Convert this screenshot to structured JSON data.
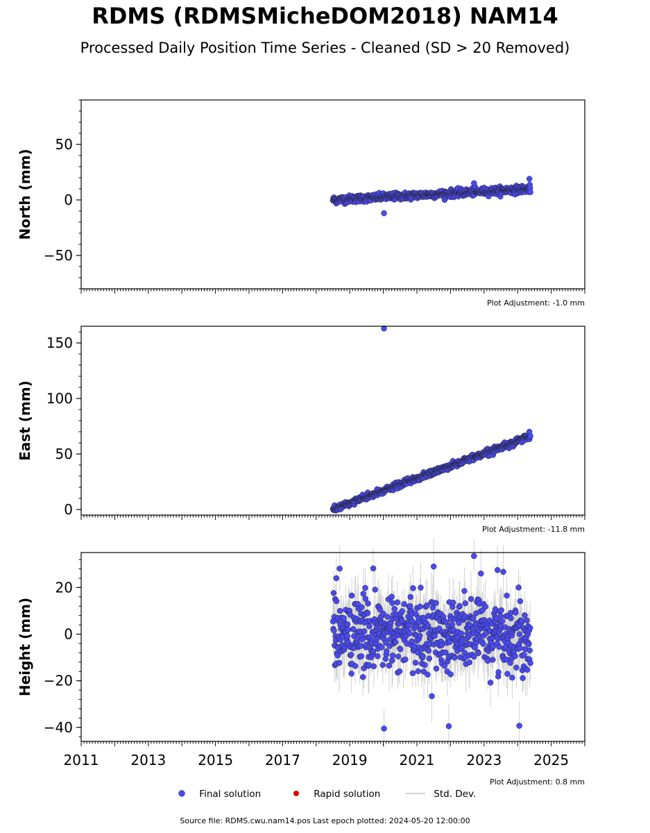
{
  "header": {
    "title": "RDMS (RDMSMicheDOM2018) NAM14",
    "subtitle": "Processed Daily Position Time Series - Cleaned (SD > 20 Removed)"
  },
  "legend": {
    "final_label": "Final solution",
    "rapid_label": "Rapid solution",
    "std_label": "Std. Dev.",
    "final_color": "#4a4af0",
    "rapid_color": "#e00000",
    "std_color": "#d0d0d0"
  },
  "footer": {
    "source_text": "Source file: RDMS.cwu.nam14.pos  Last epoch plotted: 2024-05-20 12:00:00"
  },
  "chart_data": [
    {
      "type": "scatter",
      "ylabel": "North (mm)",
      "xlim": [
        2011.0,
        2026.0
      ],
      "ylim": [
        -80,
        90
      ],
      "yticks": [
        -50,
        0,
        50
      ],
      "ytick_labels": [
        "−50",
        "0",
        "50"
      ],
      "adjustment_text": "Plot Adjustment: -1.0 mm",
      "series": [
        {
          "kind": "final",
          "x_range": [
            2018.5,
            2024.38
          ],
          "trend": [
            0.0,
            10.0
          ],
          "scatter_sd": 1.6,
          "errbar": 2.5,
          "outliers": [
            {
              "x": 2020.02,
              "y": -12.0
            },
            {
              "x": 2024.35,
              "y": 19.0
            },
            {
              "x": 2022.7,
              "y": 15.0
            }
          ]
        }
      ]
    },
    {
      "type": "scatter",
      "ylabel": "East (mm)",
      "xlim": [
        2011.0,
        2026.0
      ],
      "ylim": [
        -5,
        165
      ],
      "yticks": [
        0,
        50,
        100,
        150
      ],
      "ytick_labels": [
        "0",
        "50",
        "100",
        "150"
      ],
      "adjustment_text": "Plot Adjustment: -11.8 mm",
      "series": [
        {
          "kind": "final",
          "x_range": [
            2018.5,
            2024.38
          ],
          "trend": [
            0.0,
            66.0
          ],
          "scatter_sd": 1.3,
          "errbar": 3.0,
          "outliers": [
            {
              "x": 2020.02,
              "y": 163.0
            },
            {
              "x": 2024.35,
              "y": 70.0
            }
          ]
        }
      ]
    },
    {
      "type": "scatter",
      "ylabel": "Height (mm)",
      "xlim": [
        2011.0,
        2026.0
      ],
      "ylim": [
        -46,
        35
      ],
      "yticks": [
        -40,
        -20,
        0,
        20
      ],
      "ytick_labels": [
        "−40",
        "−20",
        "0",
        "20"
      ],
      "xticks": [
        2011,
        2013,
        2015,
        2017,
        2019,
        2021,
        2023,
        2025
      ],
      "xtick_labels": [
        "2011",
        "2013",
        "2015",
        "2017",
        "2019",
        "2021",
        "2023",
        "2025"
      ],
      "adjustment_text": "Plot Adjustment: 0.8 mm",
      "series": [
        {
          "kind": "final",
          "x_range": [
            2018.5,
            2024.38
          ],
          "trend": [
            0.0,
            0.0
          ],
          "scatter_sd": 8.0,
          "errbar": 9.0,
          "outliers": [
            {
              "x": 2020.02,
              "y": -40.5
            },
            {
              "x": 2021.95,
              "y": -39.5
            },
            {
              "x": 2024.05,
              "y": -39.3
            },
            {
              "x": 2022.7,
              "y": 33.5
            },
            {
              "x": 2023.4,
              "y": 27.5
            },
            {
              "x": 2019.7,
              "y": 28.2
            },
            {
              "x": 2021.5,
              "y": 29.0
            },
            {
              "x": 2018.6,
              "y": 24.0
            }
          ]
        }
      ]
    }
  ]
}
